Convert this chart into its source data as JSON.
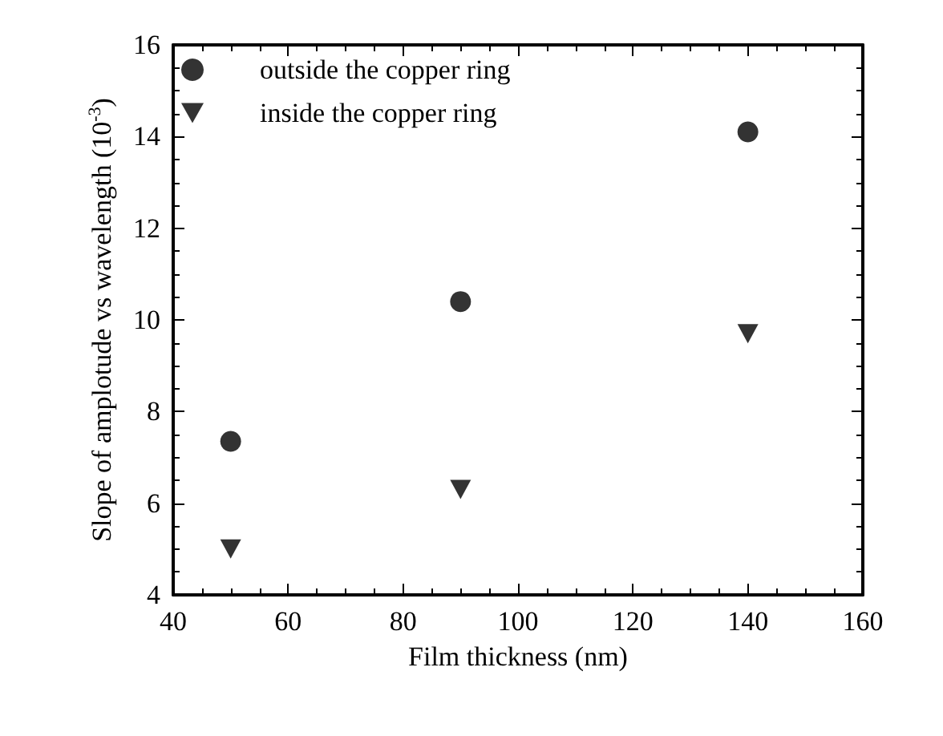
{
  "chart_data": {
    "type": "scatter",
    "xlabel": "Film thickness (nm)",
    "ylabel": "Slope of amplotude vs wavelength (10$^{-3}$)",
    "x": [
      50,
      90,
      140
    ],
    "series": [
      {
        "name": "outside the copper ring",
        "color": "#000000",
        "marker": "circle",
        "values": [
          7.35,
          10.4,
          14.1
        ]
      },
      {
        "name": "inside the copper ring",
        "color": "#000000",
        "marker": "triangle",
        "values": [
          5.0,
          6.3,
          9.7
        ]
      }
    ],
    "xlim": [
      40,
      160
    ],
    "xticks": [
      40,
      60,
      80,
      100,
      120,
      140,
      160
    ],
    "ylim": [
      4,
      16
    ],
    "yticks": [
      4,
      6,
      8,
      10,
      12,
      14,
      16
    ],
    "grid": false,
    "legend": "top left"
  }
}
